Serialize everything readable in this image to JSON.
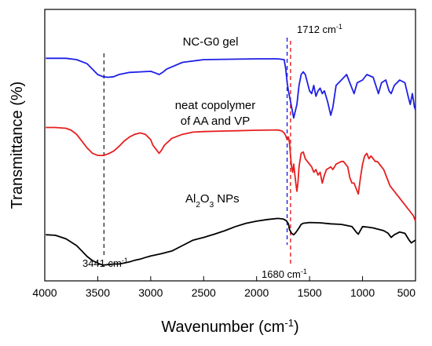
{
  "chart_data": {
    "type": "line",
    "xlabel": "Wavenumber (cm",
    "xlabel_sup": "-1",
    "xlabel_end": ")",
    "ylabel": "Transmittance (%)",
    "xlim": [
      4000,
      500
    ],
    "x_reversed": true,
    "ylim": [
      0,
      1
    ],
    "y_ticks_shown": false,
    "x_ticks": [
      4000,
      3500,
      3000,
      2500,
      2000,
      1500,
      1000,
      500
    ],
    "grid": false,
    "legend": "none",
    "series": [
      {
        "name": "NC-G0 gel",
        "color": "#1f1fe6",
        "values": [
          [
            3990,
            0.82
          ],
          [
            3800,
            0.82
          ],
          [
            3700,
            0.815
          ],
          [
            3600,
            0.8
          ],
          [
            3550,
            0.78
          ],
          [
            3500,
            0.76
          ],
          [
            3450,
            0.752
          ],
          [
            3400,
            0.75
          ],
          [
            3350,
            0.752
          ],
          [
            3300,
            0.76
          ],
          [
            3200,
            0.768
          ],
          [
            3100,
            0.77
          ],
          [
            3000,
            0.772
          ],
          [
            2950,
            0.765
          ],
          [
            2920,
            0.76
          ],
          [
            2880,
            0.77
          ],
          [
            2850,
            0.78
          ],
          [
            2700,
            0.805
          ],
          [
            2500,
            0.815
          ],
          [
            2000,
            0.818
          ],
          [
            1800,
            0.818
          ],
          [
            1740,
            0.815
          ],
          [
            1725,
            0.78
          ],
          [
            1712,
            0.73
          ],
          [
            1700,
            0.7
          ],
          [
            1680,
            0.66
          ],
          [
            1660,
            0.62
          ],
          [
            1650,
            0.6
          ],
          [
            1620,
            0.65
          ],
          [
            1600,
            0.72
          ],
          [
            1580,
            0.76
          ],
          [
            1560,
            0.77
          ],
          [
            1540,
            0.76
          ],
          [
            1500,
            0.7
          ],
          [
            1480,
            0.69
          ],
          [
            1460,
            0.72
          ],
          [
            1440,
            0.68
          ],
          [
            1420,
            0.7
          ],
          [
            1400,
            0.71
          ],
          [
            1380,
            0.69
          ],
          [
            1360,
            0.7
          ],
          [
            1330,
            0.66
          ],
          [
            1300,
            0.61
          ],
          [
            1280,
            0.64
          ],
          [
            1250,
            0.72
          ],
          [
            1200,
            0.74
          ],
          [
            1150,
            0.76
          ],
          [
            1110,
            0.72
          ],
          [
            1080,
            0.69
          ],
          [
            1050,
            0.73
          ],
          [
            1000,
            0.74
          ],
          [
            960,
            0.76
          ],
          [
            900,
            0.75
          ],
          [
            850,
            0.69
          ],
          [
            820,
            0.73
          ],
          [
            780,
            0.74
          ],
          [
            750,
            0.7
          ],
          [
            730,
            0.69
          ],
          [
            700,
            0.72
          ],
          [
            650,
            0.74
          ],
          [
            600,
            0.73
          ],
          [
            570,
            0.68
          ],
          [
            550,
            0.65
          ],
          [
            530,
            0.69
          ],
          [
            510,
            0.64
          ],
          [
            500,
            0.63
          ]
        ]
      },
      {
        "name": "neat copolymer of AA and VP",
        "color": "#e61f1f",
        "values": [
          [
            3990,
            0.565
          ],
          [
            3900,
            0.565
          ],
          [
            3800,
            0.562
          ],
          [
            3750,
            0.555
          ],
          [
            3700,
            0.54
          ],
          [
            3650,
            0.515
          ],
          [
            3600,
            0.49
          ],
          [
            3550,
            0.47
          ],
          [
            3500,
            0.462
          ],
          [
            3450,
            0.462
          ],
          [
            3400,
            0.468
          ],
          [
            3350,
            0.478
          ],
          [
            3300,
            0.495
          ],
          [
            3250,
            0.515
          ],
          [
            3200,
            0.53
          ],
          [
            3150,
            0.54
          ],
          [
            3100,
            0.545
          ],
          [
            3050,
            0.54
          ],
          [
            3000,
            0.52
          ],
          [
            2980,
            0.5
          ],
          [
            2950,
            0.485
          ],
          [
            2920,
            0.47
          ],
          [
            2900,
            0.48
          ],
          [
            2870,
            0.5
          ],
          [
            2800,
            0.525
          ],
          [
            2700,
            0.54
          ],
          [
            2600,
            0.548
          ],
          [
            2500,
            0.55
          ],
          [
            2300,
            0.552
          ],
          [
            2200,
            0.553
          ],
          [
            2000,
            0.555
          ],
          [
            1800,
            0.556
          ],
          [
            1760,
            0.552
          ],
          [
            1740,
            0.545
          ],
          [
            1725,
            0.535
          ],
          [
            1712,
            0.52
          ],
          [
            1700,
            0.53
          ],
          [
            1690,
            0.51
          ],
          [
            1680,
            0.46
          ],
          [
            1670,
            0.42
          ],
          [
            1660,
            0.4
          ],
          [
            1650,
            0.43
          ],
          [
            1630,
            0.36
          ],
          [
            1620,
            0.33
          ],
          [
            1610,
            0.36
          ],
          [
            1600,
            0.42
          ],
          [
            1580,
            0.47
          ],
          [
            1560,
            0.475
          ],
          [
            1540,
            0.45
          ],
          [
            1520,
            0.44
          ],
          [
            1500,
            0.43
          ],
          [
            1480,
            0.42
          ],
          [
            1460,
            0.4
          ],
          [
            1440,
            0.41
          ],
          [
            1420,
            0.39
          ],
          [
            1400,
            0.4
          ],
          [
            1380,
            0.36
          ],
          [
            1360,
            0.39
          ],
          [
            1340,
            0.41
          ],
          [
            1300,
            0.42
          ],
          [
            1280,
            0.41
          ],
          [
            1250,
            0.43
          ],
          [
            1200,
            0.44
          ],
          [
            1180,
            0.44
          ],
          [
            1160,
            0.43
          ],
          [
            1140,
            0.42
          ],
          [
            1120,
            0.38
          ],
          [
            1100,
            0.36
          ],
          [
            1080,
            0.36
          ],
          [
            1060,
            0.34
          ],
          [
            1040,
            0.32
          ],
          [
            1020,
            0.38
          ],
          [
            1000,
            0.43
          ],
          [
            980,
            0.46
          ],
          [
            960,
            0.47
          ],
          [
            940,
            0.45
          ],
          [
            920,
            0.46
          ],
          [
            900,
            0.45
          ],
          [
            880,
            0.44
          ],
          [
            860,
            0.44
          ],
          [
            840,
            0.43
          ],
          [
            820,
            0.42
          ],
          [
            800,
            0.41
          ],
          [
            780,
            0.39
          ],
          [
            760,
            0.37
          ],
          [
            740,
            0.35
          ],
          [
            720,
            0.34
          ],
          [
            700,
            0.33
          ],
          [
            680,
            0.32
          ],
          [
            660,
            0.31
          ],
          [
            640,
            0.3
          ],
          [
            620,
            0.29
          ],
          [
            600,
            0.28
          ],
          [
            580,
            0.27
          ],
          [
            560,
            0.26
          ],
          [
            540,
            0.25
          ],
          [
            520,
            0.24
          ],
          [
            500,
            0.22
          ]
        ]
      },
      {
        "name": "Al2O3 NPs",
        "color": "#000000",
        "values": [
          [
            3990,
            0.17
          ],
          [
            3900,
            0.168
          ],
          [
            3800,
            0.155
          ],
          [
            3700,
            0.13
          ],
          [
            3650,
            0.11
          ],
          [
            3600,
            0.09
          ],
          [
            3550,
            0.075
          ],
          [
            3500,
            0.065
          ],
          [
            3450,
            0.058
          ],
          [
            3400,
            0.06
          ],
          [
            3350,
            0.062
          ],
          [
            3300,
            0.062
          ],
          [
            3250,
            0.066
          ],
          [
            3200,
            0.07
          ],
          [
            3150,
            0.076
          ],
          [
            3100,
            0.08
          ],
          [
            3050,
            0.086
          ],
          [
            3000,
            0.092
          ],
          [
            2900,
            0.1
          ],
          [
            2800,
            0.11
          ],
          [
            2700,
            0.13
          ],
          [
            2600,
            0.15
          ],
          [
            2500,
            0.16
          ],
          [
            2400,
            0.172
          ],
          [
            2300,
            0.185
          ],
          [
            2200,
            0.2
          ],
          [
            2100,
            0.212
          ],
          [
            2000,
            0.22
          ],
          [
            1900,
            0.226
          ],
          [
            1800,
            0.23
          ],
          [
            1750,
            0.228
          ],
          [
            1720,
            0.222
          ],
          [
            1700,
            0.21
          ],
          [
            1690,
            0.19
          ],
          [
            1670,
            0.175
          ],
          [
            1650,
            0.17
          ],
          [
            1630,
            0.178
          ],
          [
            1600,
            0.195
          ],
          [
            1580,
            0.208
          ],
          [
            1560,
            0.212
          ],
          [
            1500,
            0.215
          ],
          [
            1400,
            0.214
          ],
          [
            1300,
            0.21
          ],
          [
            1200,
            0.208
          ],
          [
            1100,
            0.2
          ],
          [
            1060,
            0.18
          ],
          [
            1040,
            0.172
          ],
          [
            1020,
            0.186
          ],
          [
            1000,
            0.2
          ],
          [
            950,
            0.198
          ],
          [
            900,
            0.195
          ],
          [
            850,
            0.19
          ],
          [
            800,
            0.185
          ],
          [
            760,
            0.176
          ],
          [
            730,
            0.16
          ],
          [
            700,
            0.17
          ],
          [
            650,
            0.18
          ],
          [
            600,
            0.175
          ],
          [
            560,
            0.15
          ],
          [
            540,
            0.14
          ],
          [
            520,
            0.145
          ],
          [
            500,
            0.15
          ]
        ]
      }
    ],
    "vertical_lines": [
      {
        "x": 3441,
        "color": "#333333"
      },
      {
        "x": 1712,
        "color": "#1f1fe6"
      },
      {
        "x": 1680,
        "color": "#e61f1f"
      }
    ],
    "annotations": [
      {
        "id": "ann-3441",
        "text": "3441 cm",
        "sup": "-1",
        "color": "#000000",
        "x": 3441
      },
      {
        "id": "ann-1712",
        "text": "1712 cm",
        "sup": "-1",
        "color": "#1f1fe6",
        "x": 1712
      },
      {
        "id": "ann-1680",
        "text": "1680 cm",
        "sup": "-1",
        "color": "#e61f1f",
        "x": 1680
      }
    ],
    "series_labels": {
      "nc_g0": "NC-G0 gel",
      "copolymer_line1": "neat copolymer",
      "copolymer_line2": "of AA and VP",
      "al2o3_a": "Al",
      "al2o3_sub1": "2",
      "al2o3_b": "O",
      "al2o3_sub2": "3",
      "al2o3_c": " NPs"
    }
  }
}
